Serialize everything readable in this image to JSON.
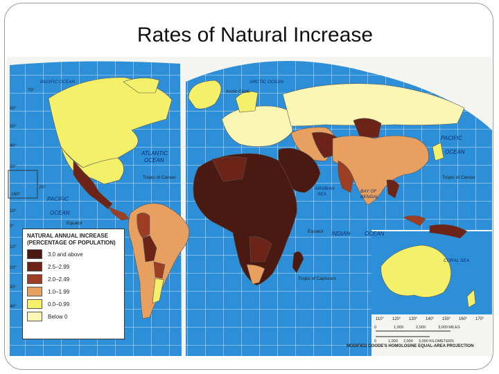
{
  "slide": {
    "title": "Rates of Natural Increase"
  },
  "legend": {
    "title_line1": "NATURAL ANNUAL INCREASE",
    "title_line2": "(PERCENTAGE OF POPULATION)",
    "items": [
      {
        "label": "3.0 and above",
        "color": "#4a1a12"
      },
      {
        "label": "2.5–2.99",
        "color": "#6b2417"
      },
      {
        "label": "2.0–2.49",
        "color": "#9b3e24"
      },
      {
        "label": "1.0–1.99",
        "color": "#e8a060"
      },
      {
        "label": "0.0–0.99",
        "color": "#f5f06a"
      },
      {
        "label": "Below 0",
        "color": "#fbf6b4"
      }
    ]
  },
  "map_labels": {
    "pacific_ocean_n": "PACIFIC OCEAN",
    "arctic_ocean": "ARCTIC OCEAN",
    "arctic_circle": "Arctic Circle",
    "atlantic_1": "ATLANTIC",
    "atlantic_2": "OCEAN",
    "tropic_cancer_w": "Tropic of Cancer",
    "tropic_cancer_e": "Tropic of Cancer",
    "pacific_w1": "PACIFIC",
    "pacific_w2": "OCEAN",
    "pacific_e1": "PACIFIC",
    "pacific_e2": "OCEAN",
    "equator_w": "Equator",
    "equator_e": "Equator",
    "arabian_sea_1": "ARABIAN",
    "arabian_sea_2": "SEA",
    "bay_bengal_1": "BAY OF",
    "bay_bengal_2": "BENGAL",
    "indian_ocean_1": "INDIAN",
    "indian_ocean_2": "OCEAN",
    "tropic_capricorn": "Tropic of Capricorn",
    "coral_sea": "CORAL SEA"
  },
  "lat_labels_left": [
    "70°",
    "60°",
    "50°",
    "40°",
    "30°",
    "20°",
    "160°",
    "10°",
    "0°",
    "10°",
    "20°",
    "30°",
    "40°"
  ],
  "lon_labels_bottom": [
    "110°",
    "120°",
    "130°",
    "140°",
    "150°",
    "160°",
    "170°"
  ],
  "scale": {
    "miles_label": "3,000 MILES",
    "km_label": "3,000 KILOMETERS",
    "miles_ticks": [
      "0",
      "1,000",
      "2,000"
    ],
    "km_ticks": [
      "0",
      "1,000",
      "2,000"
    ]
  },
  "projection": "MODIFIED GOODE'S HOMOLOSINE EQUAL-AREA PROJECTION"
}
